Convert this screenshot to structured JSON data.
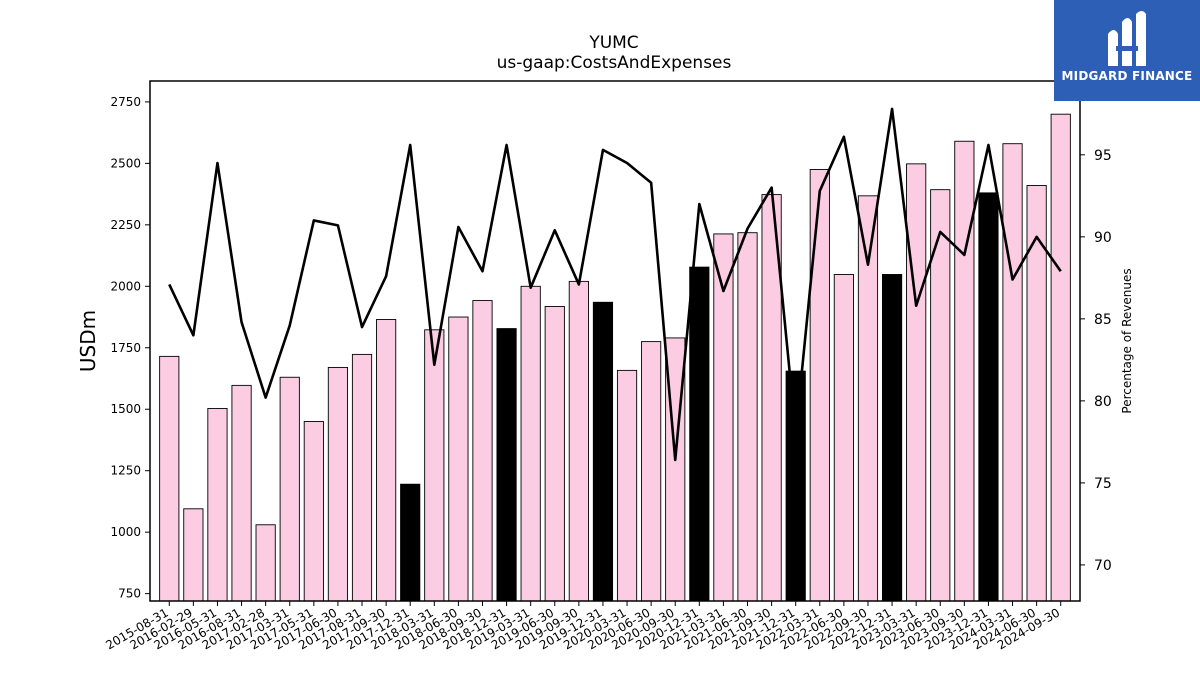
{
  "logo": {
    "text": "MIDGARD FINANCE",
    "color": "#2d5fb6"
  },
  "chart_data": {
    "type": "bar",
    "title": "YUMC",
    "subtitle": "us-gaap:CostsAndExpenses",
    "ylabel": "USDm",
    "y2label": "Percentage of Revenues",
    "ylim": [
      720,
      2835
    ],
    "y2lim": [
      67.8,
      99.5
    ],
    "yticks": [
      750,
      1000,
      1250,
      1500,
      1750,
      2000,
      2250,
      2500,
      2750
    ],
    "y2ticks": [
      70,
      75,
      80,
      85,
      90,
      95
    ],
    "grid": false,
    "bar_color": "#fccce2",
    "highlight_color": "#000000",
    "line_color": "#000000",
    "categories": [
      "2015-08-31",
      "2016-02-29",
      "2016-05-31",
      "2016-08-31",
      "2017-02-28",
      "2017-03-31",
      "2017-05-31",
      "2017-06-30",
      "2017-08-31",
      "2017-09-30",
      "2017-12-31",
      "2018-03-31",
      "2018-06-30",
      "2018-09-30",
      "2018-12-31",
      "2019-03-31",
      "2019-06-30",
      "2019-09-30",
      "2019-12-31",
      "2020-03-31",
      "2020-06-30",
      "2020-09-30",
      "2020-12-31",
      "2021-03-31",
      "2021-06-30",
      "2021-09-30",
      "2021-12-31",
      "2022-03-31",
      "2022-06-30",
      "2022-09-30",
      "2022-12-31",
      "2023-03-31",
      "2023-06-30",
      "2023-09-30",
      "2023-12-31",
      "2024-03-31",
      "2024-06-30",
      "2024-09-30"
    ],
    "series": [
      {
        "name": "CostsAndExpenses",
        "type": "bar",
        "values": [
          1715,
          1095,
          1503,
          1597,
          1030,
          1630,
          1450,
          1670,
          1723,
          1865,
          1195,
          1823,
          1875,
          1942,
          1828,
          2000,
          1918,
          2020,
          1935,
          1658,
          1775,
          1790,
          2078,
          2213,
          2218,
          2373,
          1655,
          2475,
          2048,
          2368,
          2048,
          2498,
          2393,
          2590,
          2380,
          2580,
          2410,
          2700
        ],
        "highlight": [
          false,
          false,
          false,
          false,
          false,
          false,
          false,
          false,
          false,
          false,
          true,
          false,
          false,
          false,
          true,
          false,
          false,
          false,
          true,
          false,
          false,
          false,
          true,
          false,
          false,
          false,
          true,
          false,
          false,
          false,
          true,
          false,
          false,
          false,
          true,
          false,
          false,
          false
        ]
      },
      {
        "name": "Percentage of Revenues",
        "type": "line",
        "axis": "right",
        "values": [
          87.1,
          84.0,
          94.5,
          84.8,
          80.2,
          84.6,
          91.0,
          90.7,
          84.5,
          87.6,
          95.6,
          82.2,
          90.6,
          87.9,
          95.6,
          86.9,
          90.4,
          87.1,
          95.3,
          94.5,
          93.3,
          76.4,
          92.0,
          86.7,
          90.5,
          93.0,
          78.0,
          92.8,
          96.1,
          88.3,
          97.8,
          85.8,
          90.3,
          88.9,
          95.6,
          87.4,
          90.0,
          87.9
        ]
      }
    ]
  }
}
